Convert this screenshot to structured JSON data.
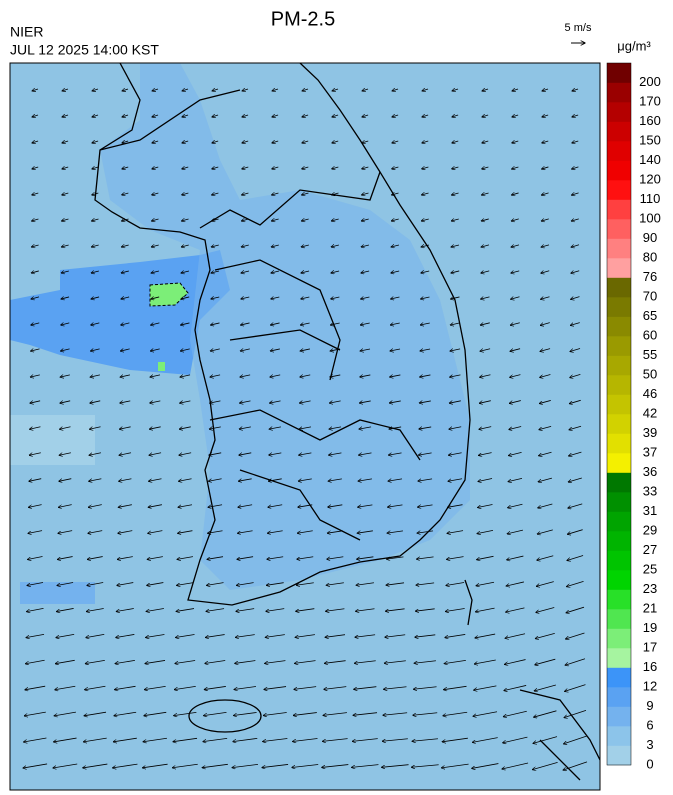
{
  "header": {
    "title": "PM-2.5",
    "agency": "NIER",
    "timestamp": "JUL 12 2025 14:00 KST"
  },
  "wind_legend": {
    "label": "5 m/s"
  },
  "colorbar": {
    "unit": "μg/m³",
    "ticks": [
      0,
      3,
      6,
      9,
      12,
      16,
      17,
      19,
      21,
      23,
      25,
      27,
      29,
      31,
      33,
      36,
      37,
      39,
      42,
      46,
      50,
      55,
      60,
      65,
      70,
      76,
      80,
      90,
      100,
      110,
      120,
      140,
      150,
      160,
      170,
      200
    ],
    "colors": [
      "#a2d0e8",
      "#8cc4ea",
      "#74b2ee",
      "#5aa2f2",
      "#3c94f8",
      "#a6f4a0",
      "#7cee78",
      "#50e650",
      "#28e028",
      "#00d400",
      "#00c400",
      "#00b400",
      "#00a400",
      "#009000",
      "#007800",
      "#f4f000",
      "#e2e000",
      "#d2d200",
      "#c4c400",
      "#b6b600",
      "#a8a800",
      "#9a9a00",
      "#8a8a00",
      "#7a7a00",
      "#6a6800",
      "#ffa0a0",
      "#ff8080",
      "#ff6060",
      "#ff4040",
      "#ff1010",
      "#f00000",
      "#e00000",
      "#cc0000",
      "#b40000",
      "#9a0000",
      "#700000"
    ]
  }
}
